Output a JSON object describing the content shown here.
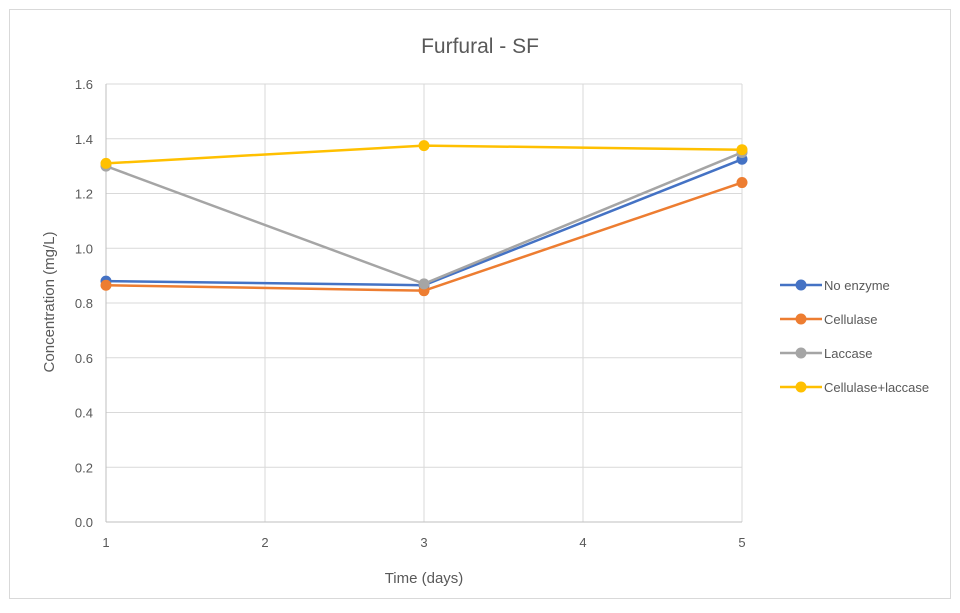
{
  "chart_data": {
    "type": "line",
    "title": "Furfural - SF",
    "xlabel": "Time (days)",
    "ylabel": "Concentration (mg/L)",
    "x": [
      1,
      3,
      5
    ],
    "xlim": [
      1,
      5
    ],
    "xticks": [
      1,
      2,
      3,
      4,
      5
    ],
    "ylim": [
      0,
      1.6
    ],
    "yticks": [
      "0.0",
      "0.2",
      "0.4",
      "0.6",
      "0.8",
      "1.0",
      "1.2",
      "1.4",
      "1.6"
    ],
    "grid": true,
    "legend_position": "right",
    "series": [
      {
        "name": "No enzyme",
        "color": "#4472c4",
        "values": [
          0.88,
          0.865,
          1.325
        ]
      },
      {
        "name": "Cellulase",
        "color": "#ed7d31",
        "values": [
          0.865,
          0.845,
          1.24
        ]
      },
      {
        "name": "Laccase",
        "color": "#a5a5a5",
        "values": [
          1.3,
          0.87,
          1.35
        ]
      },
      {
        "name": "Cellulase+laccase",
        "color": "#ffc000",
        "values": [
          1.31,
          1.375,
          1.36
        ]
      }
    ]
  }
}
